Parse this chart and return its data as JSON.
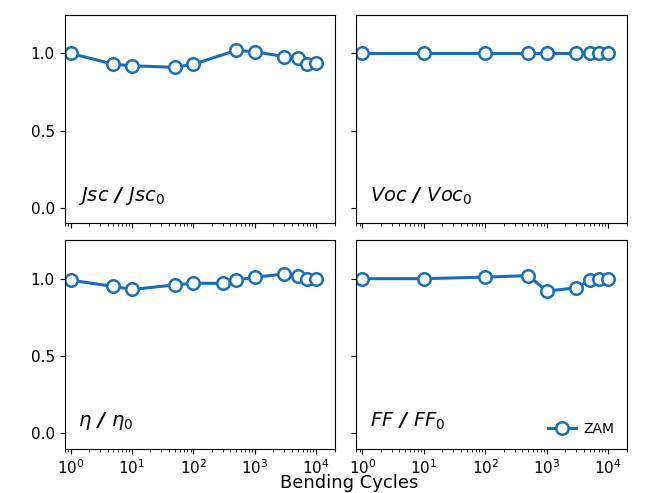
{
  "jsc_x": [
    1,
    5,
    10,
    50,
    100,
    500,
    1000,
    3000,
    5000,
    7000,
    10000
  ],
  "jsc_y": [
    1.0,
    0.93,
    0.92,
    0.91,
    0.93,
    1.02,
    1.01,
    0.98,
    0.97,
    0.93,
    0.94
  ],
  "voc_x": [
    1,
    10,
    100,
    500,
    1000,
    3000,
    5000,
    7000,
    10000
  ],
  "voc_y": [
    1.0,
    1.0,
    1.0,
    1.0,
    1.0,
    1.0,
    1.0,
    1.0,
    1.0
  ],
  "eta_x": [
    1,
    5,
    10,
    50,
    100,
    300,
    500,
    1000,
    3000,
    5000,
    7000,
    10000
  ],
  "eta_y": [
    0.99,
    0.95,
    0.93,
    0.96,
    0.97,
    0.97,
    0.99,
    1.01,
    1.03,
    1.02,
    1.0,
    1.0
  ],
  "ff_x": [
    1,
    10,
    100,
    500,
    1000,
    3000,
    5000,
    7000,
    10000
  ],
  "ff_y": [
    1.0,
    1.0,
    1.01,
    1.02,
    0.92,
    0.94,
    0.99,
    1.0,
    1.0
  ],
  "line_color": "#1a6eb5",
  "marker_face": "#ffffff",
  "marker_edge": "#1a6eb5",
  "line_width": 2.2,
  "marker_size": 9,
  "marker_edge_width": 1.8,
  "xlim": [
    0.8,
    20000
  ],
  "ylim": [
    -0.1,
    1.25
  ],
  "yticks": [
    0.0,
    0.5,
    1.0
  ],
  "xlabel": "Bending Cycles",
  "xlabel_fontsize": 13,
  "label_fontsize": 14,
  "tick_fontsize": 11,
  "legend_label": "ZAM",
  "background_color": "#ffffff"
}
